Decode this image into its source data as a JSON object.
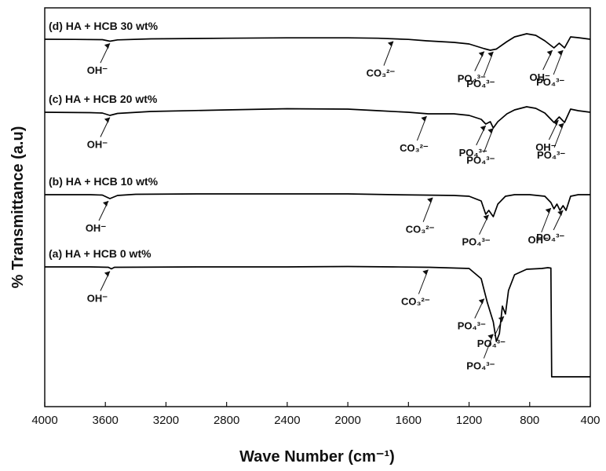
{
  "chart_data": {
    "type": "line",
    "title": "",
    "xlabel": "Wave Number (cm⁻¹)",
    "ylabel": "% Transmittance (a.u)",
    "xlim": [
      4000,
      400
    ],
    "x_reversed": true,
    "x_ticks": [
      4000,
      3600,
      3200,
      2800,
      2400,
      2000,
      1600,
      1200,
      800,
      400
    ],
    "grid": false,
    "y_ticks": "none",
    "series": [
      {
        "name": "(d) HA + HCB 30 wt%",
        "color": "#000000",
        "points": [
          [
            4000,
            0.0
          ],
          [
            3800,
            -0.2
          ],
          [
            3620,
            -0.5
          ],
          [
            3570,
            -2.5
          ],
          [
            3520,
            -0.8
          ],
          [
            3300,
            0.5
          ],
          [
            2800,
            1.3
          ],
          [
            2400,
            1.8
          ],
          [
            2000,
            1.8
          ],
          [
            1800,
            1.3
          ],
          [
            1600,
            -0.2
          ],
          [
            1480,
            -2.0
          ],
          [
            1300,
            -4.0
          ],
          [
            1200,
            -6.0
          ],
          [
            1100,
            -12.0
          ],
          [
            1060,
            -14.0
          ],
          [
            1020,
            -12.5
          ],
          [
            950,
            -3.0
          ],
          [
            900,
            3.0
          ],
          [
            820,
            7.0
          ],
          [
            760,
            5.0
          ],
          [
            700,
            -2.0
          ],
          [
            640,
            -11.0
          ],
          [
            605,
            -5.0
          ],
          [
            570,
            -11.0
          ],
          [
            530,
            3.0
          ],
          [
            480,
            2.0
          ],
          [
            400,
            0.0
          ]
        ]
      },
      {
        "name": "(c) HA + HCB 20 wt%",
        "color": "#000000",
        "points": [
          [
            4000,
            0.0
          ],
          [
            3700,
            -0.5
          ],
          [
            3620,
            -1.0
          ],
          [
            3570,
            -4.0
          ],
          [
            3520,
            -1.5
          ],
          [
            3300,
            1.0
          ],
          [
            2800,
            3.0
          ],
          [
            2400,
            4.5
          ],
          [
            2000,
            4.0
          ],
          [
            1800,
            2.0
          ],
          [
            1600,
            0.0
          ],
          [
            1470,
            -2.0
          ],
          [
            1300,
            -2.0
          ],
          [
            1200,
            -4.0
          ],
          [
            1120,
            -9.0
          ],
          [
            1090,
            -15.0
          ],
          [
            1060,
            -12.0
          ],
          [
            1040,
            -20.0
          ],
          [
            1010,
            -12.0
          ],
          [
            950,
            -2.0
          ],
          [
            900,
            3.0
          ],
          [
            820,
            7.0
          ],
          [
            760,
            5.0
          ],
          [
            700,
            -1.0
          ],
          [
            640,
            -13.0
          ],
          [
            605,
            -6.0
          ],
          [
            570,
            -13.0
          ],
          [
            530,
            4.0
          ],
          [
            480,
            2.0
          ],
          [
            400,
            0.0
          ]
        ]
      },
      {
        "name": "(b) HA + HCB 10 wt%",
        "color": "#000000",
        "points": [
          [
            4000,
            0.0
          ],
          [
            3700,
            0.0
          ],
          [
            3620,
            -0.5
          ],
          [
            3570,
            -5.0
          ],
          [
            3520,
            -1.0
          ],
          [
            3400,
            0.5
          ],
          [
            3000,
            1.0
          ],
          [
            2400,
            1.0
          ],
          [
            2000,
            1.0
          ],
          [
            1700,
            0.0
          ],
          [
            1500,
            -0.5
          ],
          [
            1300,
            -1.0
          ],
          [
            1200,
            -2.0
          ],
          [
            1120,
            -8.0
          ],
          [
            1090,
            -25.0
          ],
          [
            1070,
            -20.0
          ],
          [
            1040,
            -28.0
          ],
          [
            1010,
            -12.0
          ],
          [
            960,
            -2.0
          ],
          [
            900,
            0.0
          ],
          [
            800,
            0.0
          ],
          [
            700,
            -2.0
          ],
          [
            660,
            -10.0
          ],
          [
            640,
            -18.0
          ],
          [
            620,
            -12.0
          ],
          [
            600,
            -20.0
          ],
          [
            580,
            -14.0
          ],
          [
            560,
            -20.0
          ],
          [
            530,
            -2.0
          ],
          [
            480,
            0.0
          ],
          [
            400,
            0.0
          ]
        ]
      },
      {
        "name": "(a) HA + HCB 0 wt%",
        "color": "#000000",
        "points": [
          [
            4000,
            0.0
          ],
          [
            3700,
            0.0
          ],
          [
            3580,
            -0.5
          ],
          [
            3560,
            -2.5
          ],
          [
            3540,
            -0.5
          ],
          [
            3000,
            0.0
          ],
          [
            2400,
            0.0
          ],
          [
            2000,
            0.5
          ],
          [
            1700,
            0.0
          ],
          [
            1460,
            -0.5
          ],
          [
            1200,
            -2.0
          ],
          [
            1120,
            -15.0
          ],
          [
            1080,
            -45.0
          ],
          [
            1040,
            -70.0
          ],
          [
            1020,
            -95.0
          ],
          [
            1000,
            -85.0
          ],
          [
            980,
            -50.0
          ],
          [
            960,
            -60.0
          ],
          [
            940,
            -30.0
          ],
          [
            900,
            -10.0
          ],
          [
            820,
            -3.0
          ],
          [
            720,
            -2.0
          ],
          [
            680,
            -1.0
          ],
          [
            660,
            -1.5
          ],
          [
            655,
            -140.0
          ],
          [
            400,
            -140.0
          ]
        ]
      }
    ],
    "annotations": [
      {
        "series": 0,
        "label": "OH⁻",
        "x": 3560
      },
      {
        "series": 0,
        "label": "CO₃²⁻",
        "x": 1690
      },
      {
        "series": 0,
        "label": "PO₄³⁻",
        "x": 1090
      },
      {
        "series": 0,
        "label": "PO₄³⁻",
        "x": 1030
      },
      {
        "series": 0,
        "label": "OH⁻",
        "x": 640
      },
      {
        "series": 0,
        "label": "PO₄³⁻",
        "x": 570
      },
      {
        "series": 1,
        "label": "OH⁻",
        "x": 3560
      },
      {
        "series": 1,
        "label": "CO₃²⁻",
        "x": 1470
      },
      {
        "series": 1,
        "label": "PO₄³⁻",
        "x": 1080
      },
      {
        "series": 1,
        "label": "PO₄³⁻",
        "x": 1030
      },
      {
        "series": 1,
        "label": "OH⁻",
        "x": 600
      },
      {
        "series": 1,
        "label": "PO₄³⁻",
        "x": 565
      },
      {
        "series": 2,
        "label": "OH⁻",
        "x": 3570
      },
      {
        "series": 2,
        "label": "CO₃²⁻",
        "x": 1430
      },
      {
        "series": 2,
        "label": "PO₄³⁻",
        "x": 1060
      },
      {
        "series": 2,
        "label": "OH⁻",
        "x": 650
      },
      {
        "series": 2,
        "label": "PO₄³⁻",
        "x": 570
      },
      {
        "series": 3,
        "label": "OH⁻",
        "x": 3560
      },
      {
        "series": 3,
        "label": "CO₃²⁻",
        "x": 1460
      },
      {
        "series": 3,
        "label": "PO₄³⁻",
        "x": 1090
      },
      {
        "series": 3,
        "label": "PO₄³⁻",
        "x": 1030
      },
      {
        "series": 3,
        "label": "PO₄³⁻",
        "x": 960
      }
    ]
  }
}
